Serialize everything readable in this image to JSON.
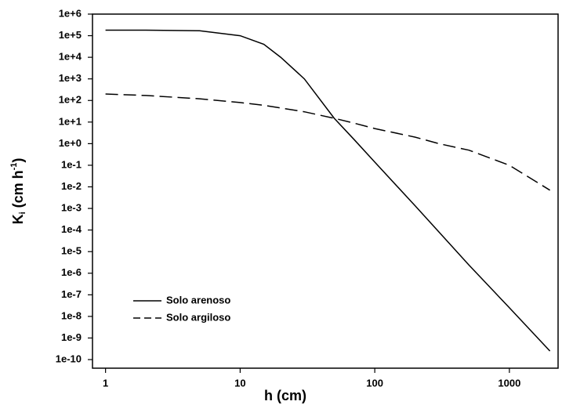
{
  "chart_data": {
    "type": "line",
    "xlabel": "h (cm)",
    "ylabel": {
      "base": "K",
      "sub": "i",
      "mid": " (cm h",
      "sup": "-1",
      "end": ")"
    },
    "x": [
      1,
      2,
      5,
      10,
      15,
      20,
      30,
      50,
      70,
      100,
      200,
      300,
      500,
      1000,
      2000
    ],
    "series": [
      {
        "name": "Solo arenoso",
        "color": "#000000",
        "dash": "none",
        "values": [
          180000,
          180000,
          170000,
          100000,
          40000,
          10000,
          1000,
          15,
          1.6,
          0.14,
          0.0013,
          8e-05,
          2.4e-06,
          2.5e-08,
          2.5e-10
        ]
      },
      {
        "name": "Solo argiloso",
        "color": "#000000",
        "dash": "dashed",
        "values": [
          200,
          170,
          120,
          80,
          60,
          45,
          30,
          15,
          9,
          5,
          2,
          1,
          0.5,
          0.1,
          0.007
        ]
      }
    ],
    "log_x": true,
    "log_y": true,
    "xlim": [
      0.8,
      2300
    ],
    "xticks": [
      1,
      10,
      100,
      1000
    ],
    "ylim": [
      4e-11,
      1000000
    ],
    "yticks": [
      {
        "value": 1000000,
        "label": "1e+6"
      },
      {
        "value": 100000,
        "label": "1e+5"
      },
      {
        "value": 10000,
        "label": "1e+4"
      },
      {
        "value": 1000,
        "label": "1e+3"
      },
      {
        "value": 100,
        "label": "1e+2"
      },
      {
        "value": 10,
        "label": "1e+1"
      },
      {
        "value": 1,
        "label": "1e+0"
      },
      {
        "value": 0.1,
        "label": "1e-1"
      },
      {
        "value": 0.01,
        "label": "1e-2"
      },
      {
        "value": 0.001,
        "label": "1e-3"
      },
      {
        "value": 0.0001,
        "label": "1e-4"
      },
      {
        "value": 1e-05,
        "label": "1e-5"
      },
      {
        "value": 1e-06,
        "label": "1e-6"
      },
      {
        "value": 1e-07,
        "label": "1e-7"
      },
      {
        "value": 1e-08,
        "label": "1e-8"
      },
      {
        "value": 1e-09,
        "label": "1e-9"
      },
      {
        "value": 1e-10,
        "label": "1e-10"
      }
    ],
    "legend": "lower left"
  }
}
